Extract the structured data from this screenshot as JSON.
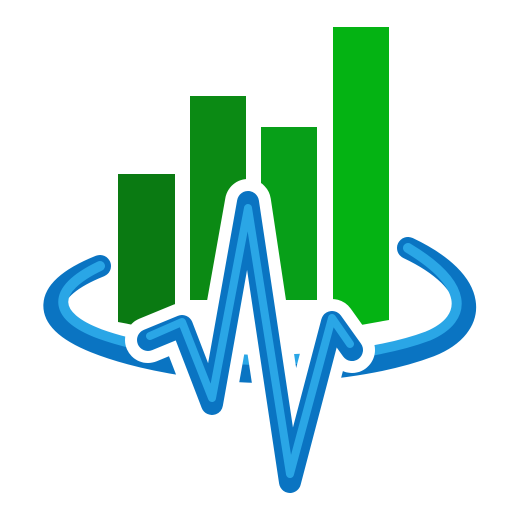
{
  "logo": {
    "name": "analytics-pulse-logo",
    "icon": "bar-chart-heartbeat-icon",
    "bar_levels": [
      0.5,
      0.74,
      0.65,
      0.98
    ],
    "colors": {
      "background": "#ffffff",
      "bar_1": "#0a7a12",
      "bar_2": "#0b8a14",
      "bar_3": "#079f18",
      "bar_4": "#04b313",
      "ring_dark": "#0a74c2",
      "ring_light": "#2aa6e6",
      "pulse_outline": "#ffffff"
    }
  }
}
